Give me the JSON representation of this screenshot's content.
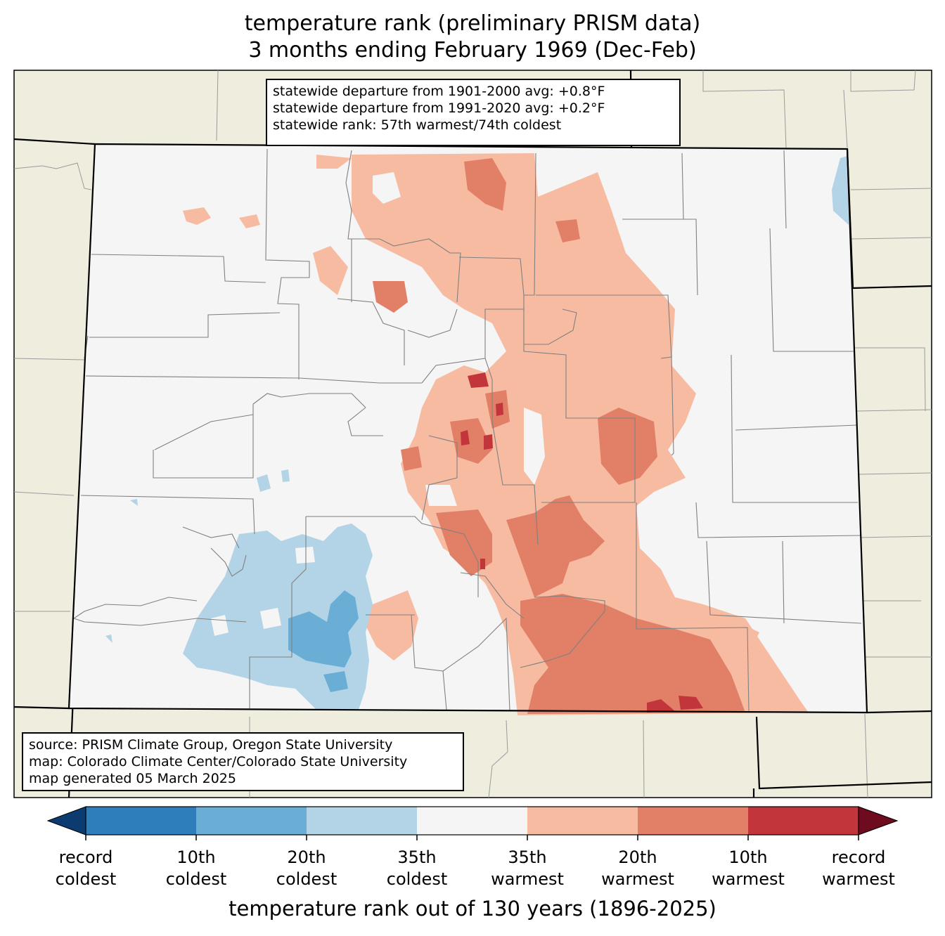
{
  "title": {
    "line1": "temperature rank (preliminary PRISM data)",
    "line2": "3 months ending February 1969 (Dec-Feb)"
  },
  "stats": {
    "line1": "statewide departure from 1901-2000 avg: +0.8°F",
    "line2": "statewide departure from 1991-2020 avg: +0.2°F",
    "line3": "statewide rank: 57th warmest/74th coldest"
  },
  "source": {
    "line1": "source: PRISM Climate Group, Oregon State University",
    "line2": "map: Colorado Climate Center/Colorado State University",
    "line3": "map generated 05 March 2025"
  },
  "colorbar": {
    "title": "temperature rank out of 130 years (1896-2025)",
    "labels": [
      {
        "l1": "record",
        "l2": "coldest"
      },
      {
        "l1": "10th",
        "l2": "coldest"
      },
      {
        "l1": "20th",
        "l2": "coldest"
      },
      {
        "l1": "35th",
        "l2": "coldest"
      },
      {
        "l1": "35th",
        "l2": "warmest"
      },
      {
        "l1": "20th",
        "l2": "warmest"
      },
      {
        "l1": "10th",
        "l2": "warmest"
      },
      {
        "l1": "record",
        "l2": "warmest"
      }
    ],
    "colors": {
      "below_record_coldest": "#0b3b70",
      "record_to_10th_coldest": "#2e7ebc",
      "10th_to_20th_coldest": "#6aaed6",
      "20th_to_35th_coldest": "#b3d4e7",
      "near_normal": "#f5f5f5",
      "35th_to_20th_warmest": "#f7bba2",
      "20th_to_10th_warmest": "#e27f67",
      "10th_to_record_warmest": "#c2363b",
      "above_record_warmest": "#6f0b1f"
    }
  },
  "map_colors": {
    "land_outside": "#efedde",
    "state_border": "#000000",
    "county_lines": "#808080"
  }
}
